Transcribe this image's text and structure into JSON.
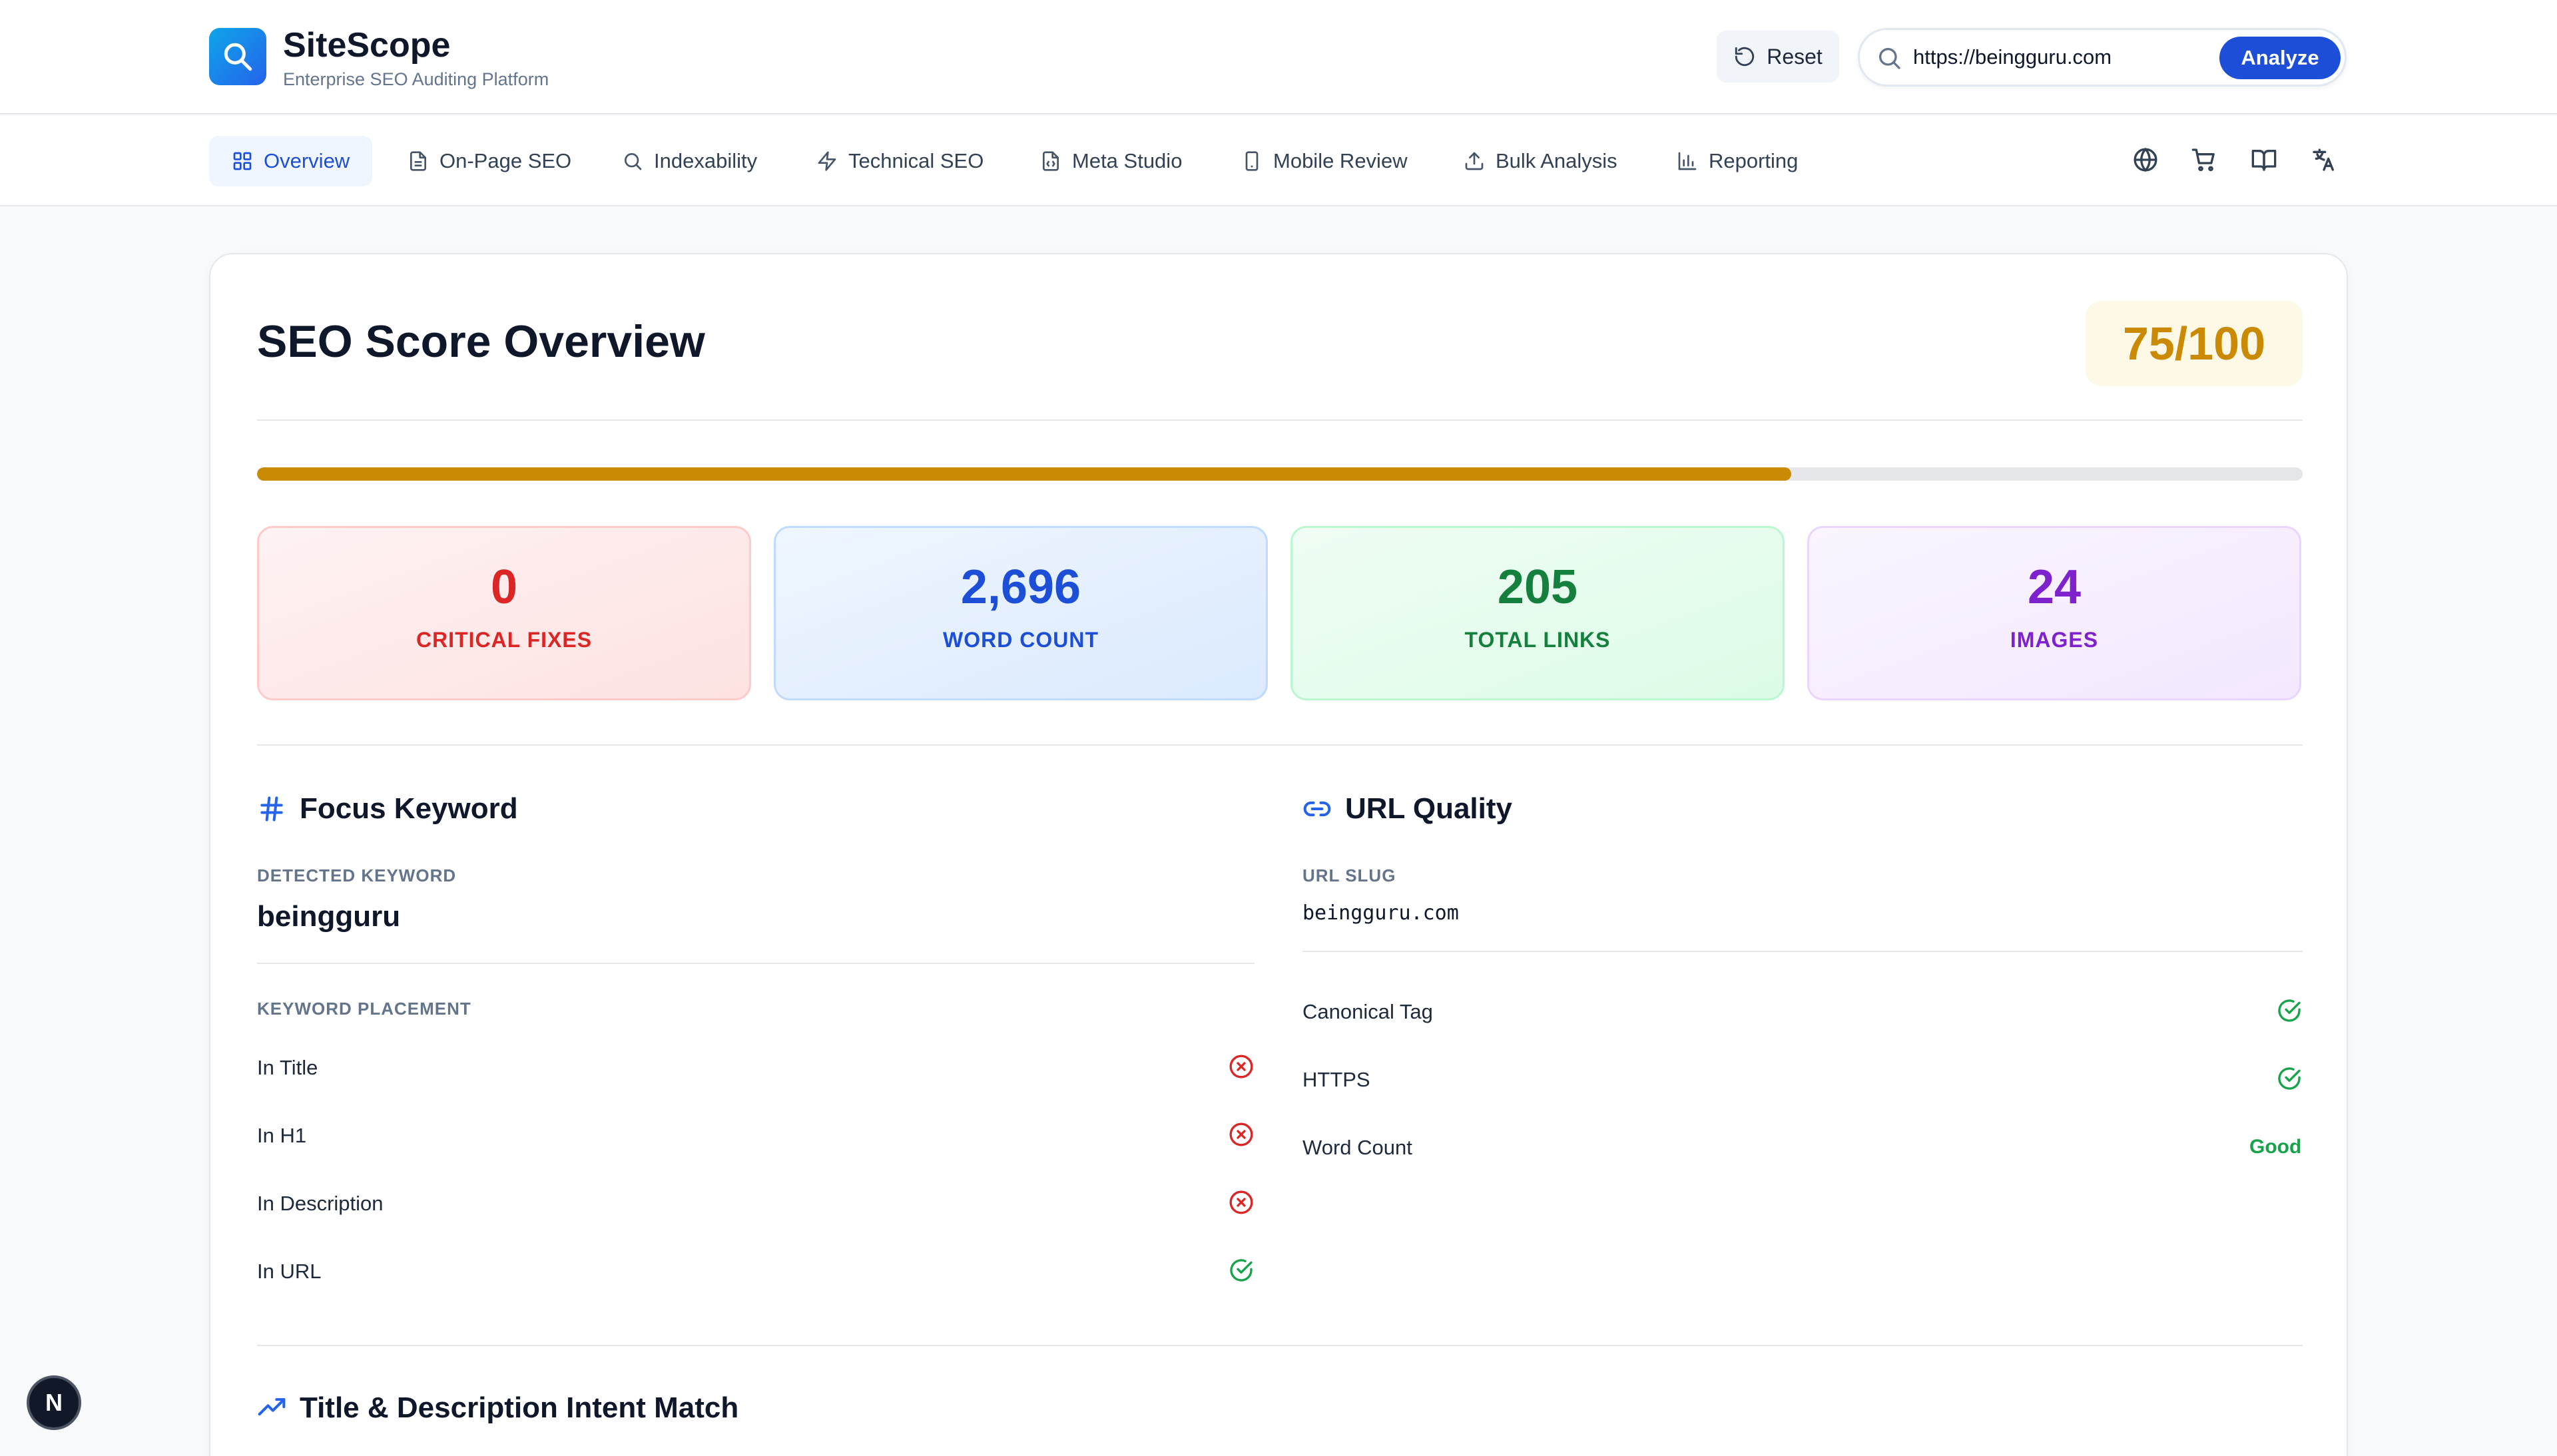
{
  "app": {
    "name": "SiteScope",
    "tagline": "Enterprise SEO Auditing Platform"
  },
  "toolbar": {
    "reset_label": "Reset",
    "search_value": "https://beingguru.com",
    "analyze_label": "Analyze"
  },
  "nav": {
    "tabs": [
      {
        "label": "Overview",
        "icon": "grid-icon",
        "active": true
      },
      {
        "label": "On-Page SEO",
        "icon": "document-icon"
      },
      {
        "label": "Indexability",
        "icon": "search-icon"
      },
      {
        "label": "Technical SEO",
        "icon": "lightning-icon"
      },
      {
        "label": "Meta Studio",
        "icon": "file-code-icon"
      },
      {
        "label": "Mobile Review",
        "icon": "phone-icon"
      },
      {
        "label": "Bulk Analysis",
        "icon": "upload-icon"
      },
      {
        "label": "Reporting",
        "icon": "bar-chart-icon"
      }
    ],
    "utility_icons": [
      "globe-icon",
      "cart-icon",
      "book-icon",
      "translate-icon"
    ]
  },
  "overview": {
    "title": "SEO Score Overview",
    "score_label": "75/100",
    "score_percent": 75,
    "accent_color": "#ca8a04",
    "stats": [
      {
        "value": "0",
        "label": "CRITICAL FIXES",
        "tone": "red"
      },
      {
        "value": "2,696",
        "label": "WORD COUNT",
        "tone": "blue"
      },
      {
        "value": "205",
        "label": "TOTAL LINKS",
        "tone": "green"
      },
      {
        "value": "24",
        "label": "IMAGES",
        "tone": "purple"
      }
    ]
  },
  "focus_keyword": {
    "title": "Focus Keyword",
    "detected_label": "DETECTED KEYWORD",
    "keyword": "beingguru",
    "placement_label": "KEYWORD PLACEMENT",
    "placements": [
      {
        "label": "In Title",
        "status": "fail"
      },
      {
        "label": "In H1",
        "status": "fail"
      },
      {
        "label": "In Description",
        "status": "fail"
      },
      {
        "label": "In URL",
        "status": "pass"
      }
    ]
  },
  "url_quality": {
    "title": "URL Quality",
    "slug_label": "URL SLUG",
    "slug": "beingguru.com",
    "checks": [
      {
        "label": "Canonical Tag",
        "status": "pass"
      },
      {
        "label": "HTTPS",
        "status": "pass"
      },
      {
        "label": "Word Count",
        "status": "text",
        "value": "Good"
      }
    ]
  },
  "intent": {
    "title": "Title & Description Intent Match"
  },
  "corner_badge": "N"
}
